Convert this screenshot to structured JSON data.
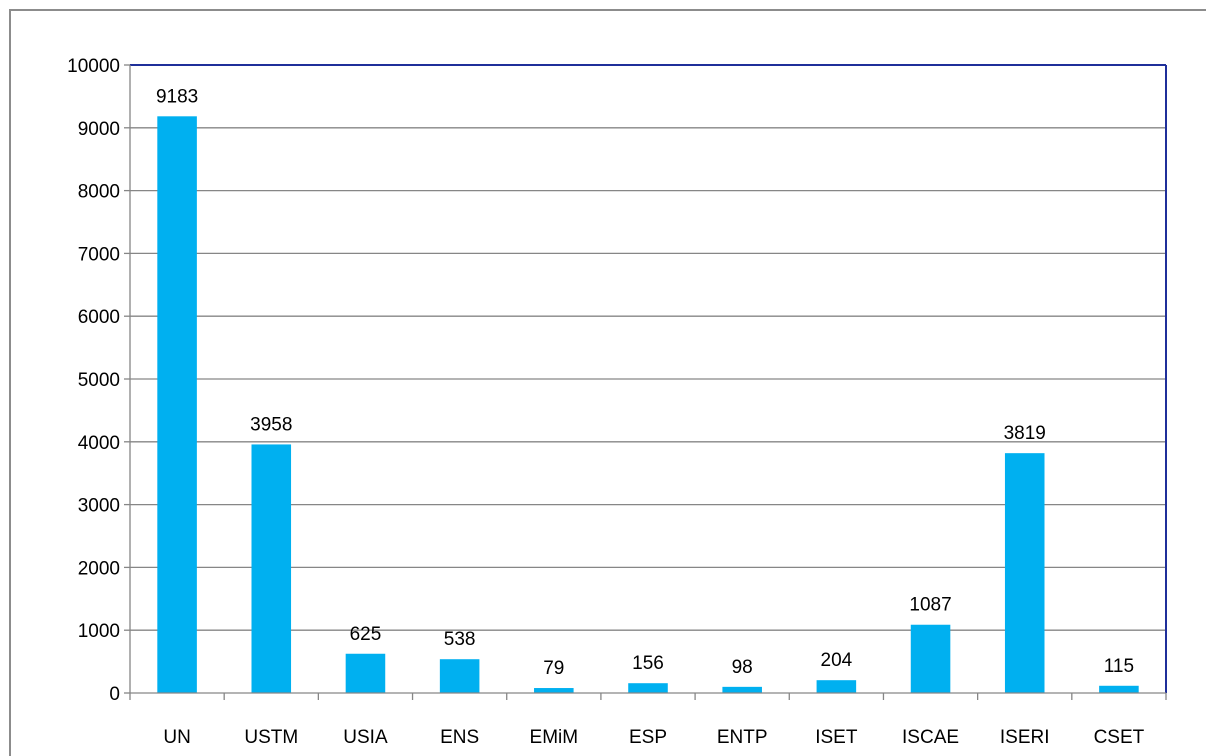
{
  "chart_data": {
    "type": "bar",
    "title": "",
    "xlabel": "",
    "ylabel": "",
    "categories": [
      "UN",
      "USTM",
      "USIA",
      "ENS",
      "EMiM",
      "ESP",
      "ENTP",
      "ISET",
      "ISCAE",
      "ISERI",
      "CSET"
    ],
    "values": [
      9183,
      3958,
      625,
      538,
      79,
      156,
      98,
      204,
      1087,
      3819,
      115
    ],
    "ylim": [
      0,
      10000
    ],
    "yticks": [
      0,
      1000,
      2000,
      3000,
      4000,
      5000,
      6000,
      7000,
      8000,
      9000,
      10000
    ],
    "ytick_labels": [
      "0",
      "1000",
      "2000",
      "3000",
      "4000",
      "5000",
      "6000",
      "7000",
      "8000",
      "9000",
      "10000"
    ],
    "data_labels": [
      "9183",
      "3958",
      "625",
      "538",
      "79",
      "156",
      "98",
      "204",
      "1087",
      "3819",
      "115"
    ],
    "grid": true,
    "legend": "none",
    "colors": {
      "bar": "#00b0f0",
      "gridline": "#868686",
      "plot_border": "#1f2f9a",
      "axis": "#868686"
    }
  }
}
